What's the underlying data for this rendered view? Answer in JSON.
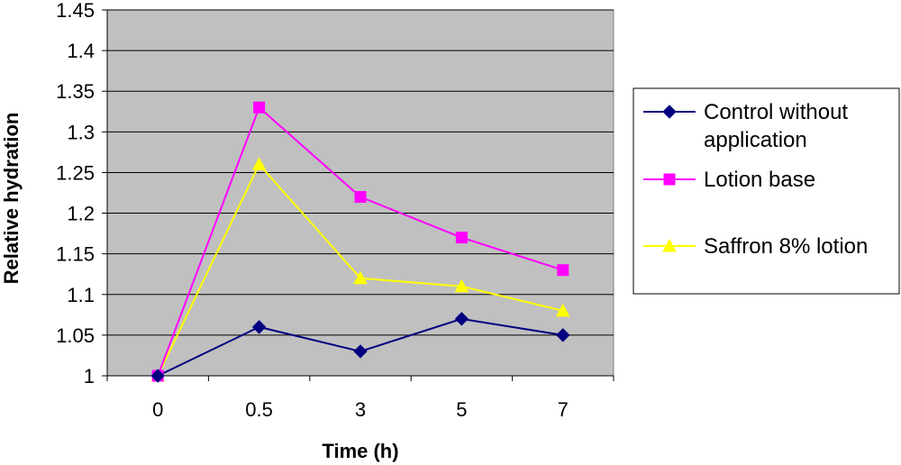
{
  "chart_data": {
    "type": "line",
    "categories": [
      "0",
      "0.5",
      "3",
      "5",
      "7"
    ],
    "xlabel": "Time (h)",
    "ylabel": "Relative hydration",
    "ylim": [
      1,
      1.45
    ],
    "yticks": [
      "1",
      "1.05",
      "1.1",
      "1.15",
      "1.2",
      "1.25",
      "1.3",
      "1.35",
      "1.4",
      "1.45"
    ],
    "plot_background": "#c0c0c0",
    "grid": true,
    "legend_position": "right",
    "series": [
      {
        "name": "Control without application",
        "values": [
          1.0,
          1.06,
          1.03,
          1.07,
          1.05
        ],
        "color": "#000080",
        "marker": "diamond"
      },
      {
        "name": "Lotion base",
        "values": [
          1.0,
          1.33,
          1.22,
          1.17,
          1.13
        ],
        "color": "#ff00ff",
        "marker": "square"
      },
      {
        "name": "Saffron 8% lotion",
        "values": [
          1.0,
          1.26,
          1.12,
          1.11,
          1.08
        ],
        "color": "#ffff00",
        "marker": "triangle"
      }
    ]
  }
}
